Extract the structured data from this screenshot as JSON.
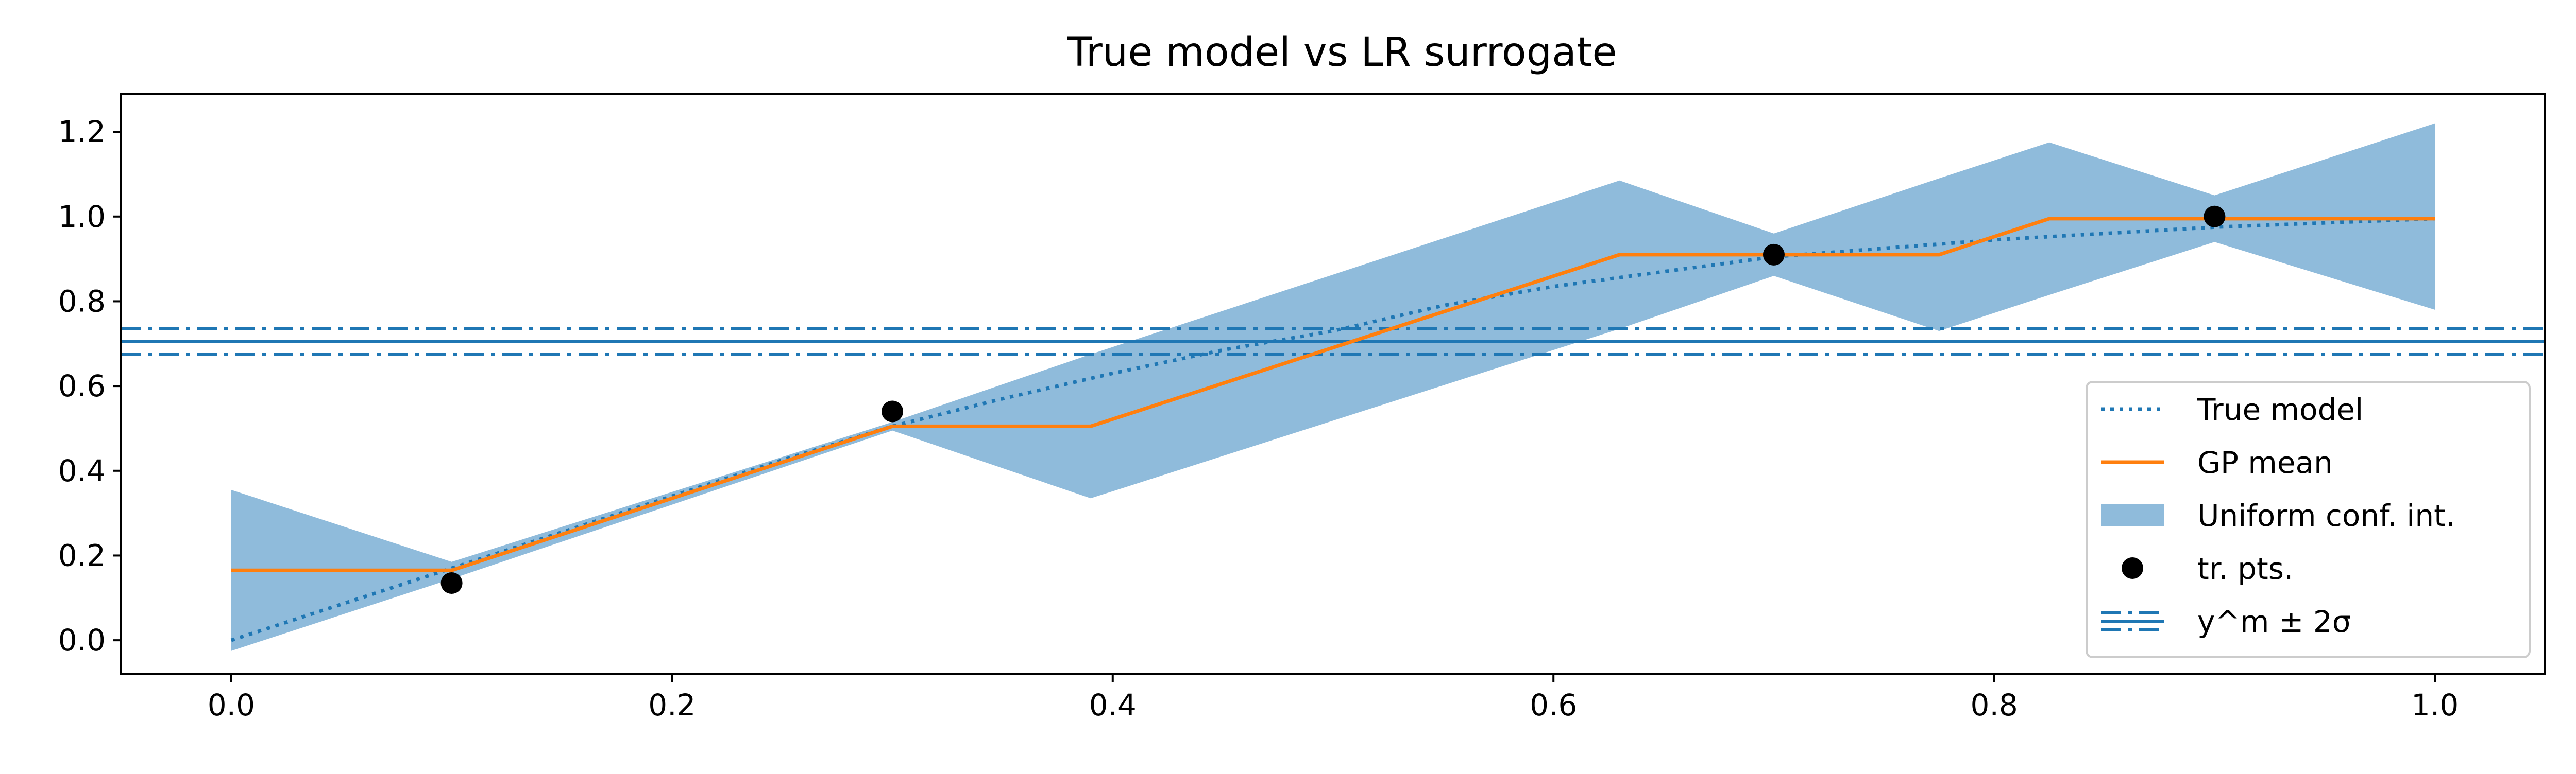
{
  "chart_data": {
    "type": "line",
    "title": "True model vs LR surrogate",
    "xlabel": "",
    "ylabel": "",
    "xlim": [
      -0.05,
      1.05
    ],
    "ylim": [
      -0.08,
      1.29
    ],
    "xticks": [
      "0.0",
      "0.2",
      "0.4",
      "0.6",
      "0.8",
      "1.0"
    ],
    "yticks": [
      "0.0",
      "0.2",
      "0.4",
      "0.6",
      "0.8",
      "1.0",
      "1.2"
    ],
    "grid": false,
    "legend_position": "lower-right",
    "colors": {
      "blue": "#1f77b4",
      "orange": "#ff7f0e",
      "band": "#8fbbdb",
      "points": "#000000"
    },
    "series": [
      {
        "name": "True model",
        "style": "dotted",
        "x": [
          0.0,
          0.05,
          0.1,
          0.15,
          0.2,
          0.25,
          0.3,
          0.35,
          0.4,
          0.45,
          0.5,
          0.55,
          0.6,
          0.65,
          0.7,
          0.75,
          0.8,
          0.85,
          0.9,
          0.95,
          1.0
        ],
        "y": [
          0.0,
          0.085,
          0.17,
          0.255,
          0.34,
          0.425,
          0.505,
          0.57,
          0.63,
          0.685,
          0.73,
          0.79,
          0.835,
          0.87,
          0.905,
          0.925,
          0.945,
          0.96,
          0.975,
          0.985,
          0.995
        ]
      },
      {
        "name": "GP mean",
        "style": "solid",
        "x": [
          0.0,
          0.1,
          0.3,
          0.39,
          0.63,
          0.7,
          0.775,
          0.825,
          0.9,
          1.0
        ],
        "y": [
          0.165,
          0.165,
          0.505,
          0.505,
          0.91,
          0.91,
          0.91,
          0.995,
          0.995,
          0.995
        ]
      }
    ],
    "confidence_band": {
      "name": "Uniform conf. int.",
      "x": [
        0.0,
        0.1,
        0.3,
        0.39,
        0.63,
        0.7,
        0.775,
        0.825,
        0.9,
        1.0
      ],
      "upper": [
        0.355,
        0.185,
        0.515,
        0.675,
        1.085,
        0.96,
        1.09,
        1.175,
        1.05,
        1.22
      ],
      "lower": [
        -0.025,
        0.145,
        0.495,
        0.335,
        0.735,
        0.86,
        0.73,
        0.815,
        0.94,
        0.78
      ]
    },
    "training_points": {
      "name": "tr. pts.",
      "x": [
        0.1,
        0.3,
        0.7,
        0.9
      ],
      "y": [
        0.135,
        0.54,
        0.91,
        1.0
      ]
    },
    "reference_lines": {
      "name": "y^m ± 2σ",
      "center": 0.705,
      "lower": 0.675,
      "upper": 0.735
    },
    "legend": [
      "True model",
      "GP mean",
      "Uniform conf. int.",
      "tr. pts.",
      "y^m ± 2σ"
    ]
  }
}
